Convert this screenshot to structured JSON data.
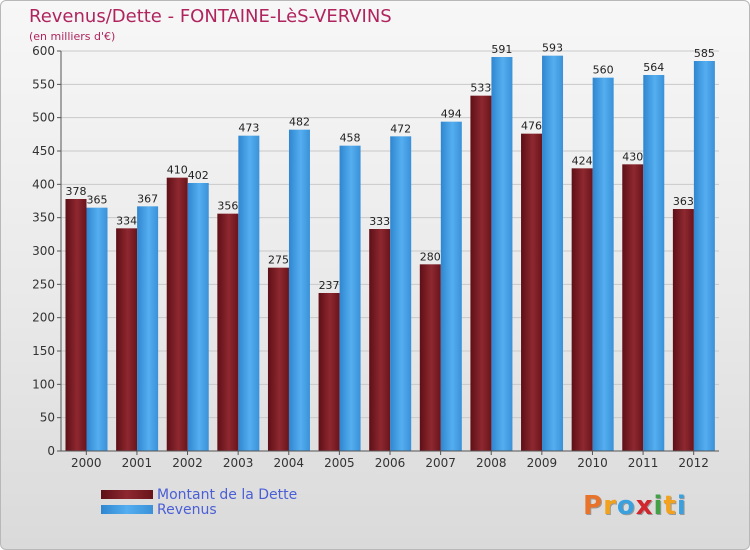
{
  "title": "Revenus/Dette - FONTAINE-LèS-VERVINS",
  "subtitle": "(en milliers d'€)",
  "colors": {
    "dette": "#7a1820",
    "revenus": "#3f97dd",
    "title": "#b0245e",
    "legend_text": "#4a5fd6"
  },
  "chart_data": {
    "type": "bar",
    "title": "Revenus/Dette - FONTAINE-LèS-VERVINS",
    "ylabel": "(en milliers d'€)",
    "xlabel": "",
    "categories": [
      "2000",
      "2001",
      "2002",
      "2003",
      "2004",
      "2005",
      "2006",
      "2007",
      "2008",
      "2009",
      "2010",
      "2011",
      "2012"
    ],
    "series": [
      {
        "name": "Montant de la Dette",
        "values": [
          378,
          334,
          410,
          356,
          275,
          237,
          333,
          280,
          533,
          476,
          424,
          430,
          363
        ]
      },
      {
        "name": "Revenus",
        "values": [
          365,
          367,
          402,
          473,
          482,
          458,
          472,
          494,
          591,
          593,
          560,
          564,
          585
        ]
      }
    ],
    "ylim": [
      0,
      600
    ],
    "yticks": [
      0,
      50,
      100,
      150,
      200,
      250,
      300,
      350,
      400,
      450,
      500,
      550,
      600
    ],
    "grid": true,
    "legend": "bottom-left"
  },
  "logo": {
    "text": "Proxiti",
    "letters": [
      "P",
      "r",
      "o",
      "x",
      "i",
      "t",
      "i"
    ],
    "colors": [
      "#e8732a",
      "#f2a21c",
      "#3aa0de",
      "#d2262f",
      "#43a047",
      "#f2a21c",
      "#3aa0de"
    ]
  }
}
